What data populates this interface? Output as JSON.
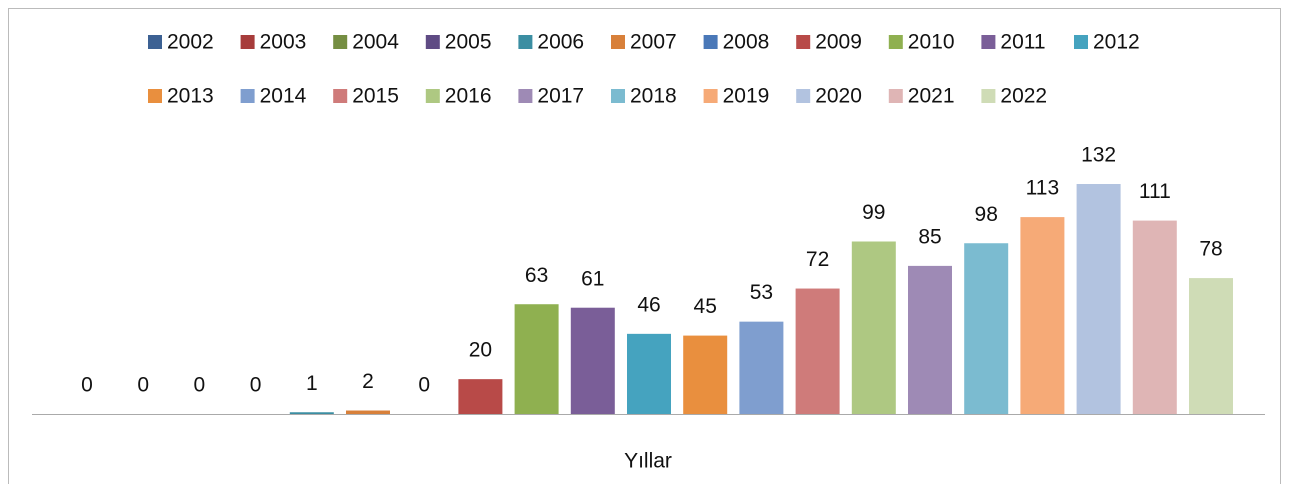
{
  "chart_data": {
    "type": "bar",
    "x_label": "Yıllar",
    "series": [
      {
        "name": "2002",
        "color": "#3c6193",
        "values": [
          0
        ]
      },
      {
        "name": "2003",
        "color": "#a73c3b",
        "values": [
          0
        ]
      },
      {
        "name": "2004",
        "color": "#758e42",
        "values": [
          0
        ]
      },
      {
        "name": "2005",
        "color": "#5f4b84",
        "values": [
          0
        ]
      },
      {
        "name": "2006",
        "color": "#3b8ea2",
        "values": [
          1
        ]
      },
      {
        "name": "2007",
        "color": "#d8803a",
        "values": [
          2
        ]
      },
      {
        "name": "2008",
        "color": "#4a78b8",
        "values": [
          0
        ]
      },
      {
        "name": "2009",
        "color": "#b84a48",
        "values": [
          20
        ]
      },
      {
        "name": "2010",
        "color": "#8fb050",
        "values": [
          63
        ]
      },
      {
        "name": "2011",
        "color": "#7a5e98",
        "values": [
          61
        ]
      },
      {
        "name": "2012",
        "color": "#45a3bf",
        "values": [
          46
        ]
      },
      {
        "name": "2013",
        "color": "#e98f3e",
        "values": [
          45
        ]
      },
      {
        "name": "2014",
        "color": "#7f9ecf",
        "values": [
          53
        ]
      },
      {
        "name": "2015",
        "color": "#cf7b7a",
        "values": [
          72
        ]
      },
      {
        "name": "2016",
        "color": "#aec882",
        "values": [
          99
        ]
      },
      {
        "name": "2017",
        "color": "#9e8ab5",
        "values": [
          85
        ]
      },
      {
        "name": "2018",
        "color": "#7bbbd0",
        "values": [
          98
        ]
      },
      {
        "name": "2019",
        "color": "#f6aa77",
        "values": [
          113
        ]
      },
      {
        "name": "2020",
        "color": "#b2c3e0",
        "values": [
          132
        ]
      },
      {
        "name": "2021",
        "color": "#dfb5b5",
        "values": [
          111
        ]
      },
      {
        "name": "2022",
        "color": "#cfdcb6",
        "values": [
          78
        ]
      }
    ]
  }
}
